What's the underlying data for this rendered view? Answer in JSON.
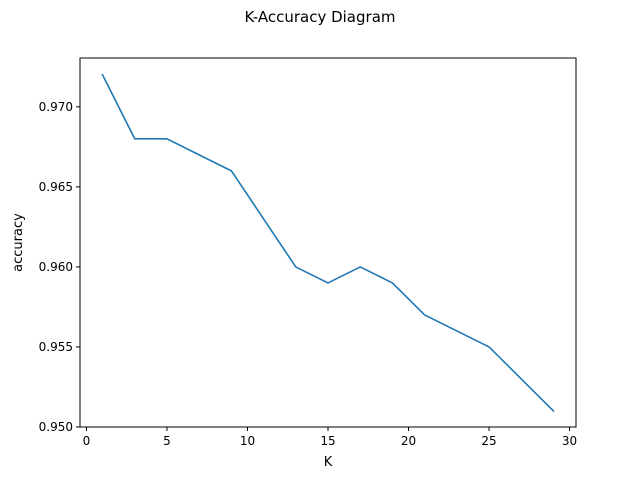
{
  "chart_data": {
    "type": "line",
    "title": "K-Accuracy Diagram",
    "xlabel": "K",
    "ylabel": "accuracy",
    "x": [
      1,
      3,
      5,
      7,
      9,
      11,
      13,
      15,
      17,
      19,
      21,
      23,
      25,
      27,
      29
    ],
    "series": [
      {
        "values": [
          0.972,
          0.968,
          0.968,
          0.967,
          0.966,
          0.963,
          0.96,
          0.959,
          0.96,
          0.959,
          0.957,
          0.956,
          0.955,
          0.953,
          0.951
        ],
        "color": "#1f77b4"
      }
    ],
    "xlim": [
      -0.4,
      30.4
    ],
    "ylim": [
      0.95,
      0.97305
    ],
    "xticks": [
      0,
      5,
      10,
      15,
      20,
      25,
      30
    ],
    "xtick_labels": [
      "0",
      "5",
      "10",
      "15",
      "20",
      "25",
      "30"
    ],
    "yticks": [
      0.95,
      0.955,
      0.96,
      0.965,
      0.97
    ],
    "ytick_labels": [
      "0.950",
      "0.955",
      "0.960",
      "0.965",
      "0.970"
    ],
    "grid": false,
    "legend": false
  }
}
